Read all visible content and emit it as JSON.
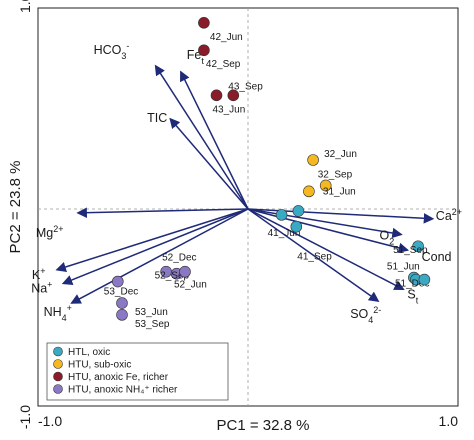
{
  "chart_data": {
    "type": "scatter",
    "subtype": "PCA biplot",
    "xlabel": "PC1 = 32.8 %",
    "ylabel": "PC2 = 23.8 %",
    "xlim": [
      -1.0,
      1.0
    ],
    "ylim": [
      -1.0,
      1.0
    ],
    "xticks": [
      {
        "value": -1.0,
        "label": "-1.0"
      },
      {
        "value": 1.0,
        "label": "1.0"
      }
    ],
    "yticks": [
      {
        "value": 1.0,
        "label": "1.0"
      },
      {
        "value": -1.0,
        "label": "-1.0"
      }
    ],
    "zero_lines": true,
    "legend_position": "bottom-left",
    "arrow_color": "#1f2a78",
    "groups": [
      {
        "name": "HTL, oxic",
        "color": "#3aa9c4"
      },
      {
        "name": "HTU, sub-oxic",
        "color": "#f5b820"
      },
      {
        "name": "HTU, anoxic Fe, richer",
        "color": "#8a1c2a"
      },
      {
        "name": "HTU, anoxic NH₄⁺ richer",
        "color": "#8a78c4"
      }
    ],
    "vectors": [
      {
        "label": "HCO3-",
        "x": -0.44,
        "y": 0.73
      },
      {
        "label": "Fet",
        "x": -0.32,
        "y": 0.7
      },
      {
        "label": "TIC",
        "x": -0.37,
        "y": 0.46
      },
      {
        "label": "Ca2+",
        "x": 0.88,
        "y": -0.05
      },
      {
        "label": "O2",
        "x": 0.73,
        "y": -0.13
      },
      {
        "label": "Cond",
        "x": 0.76,
        "y": -0.21
      },
      {
        "label": "St",
        "x": 0.74,
        "y": -0.41
      },
      {
        "label": "SO42-",
        "x": 0.62,
        "y": -0.47
      },
      {
        "label": "Mg2+",
        "x": -0.81,
        "y": -0.02
      },
      {
        "label": "K+",
        "x": -0.91,
        "y": -0.31
      },
      {
        "label": "Na+",
        "x": -0.88,
        "y": -0.38
      },
      {
        "label": "NH4+",
        "x": -0.84,
        "y": -0.48
      }
    ],
    "points": [
      {
        "label": "42_Jun",
        "group": 2,
        "x": -0.21,
        "y": 0.95
      },
      {
        "label": "42_Sep",
        "group": 2,
        "x": -0.21,
        "y": 0.81
      },
      {
        "label": "43_Sep",
        "group": 2,
        "x": -0.07,
        "y": 0.58
      },
      {
        "label": "43_Jun",
        "group": 2,
        "x": -0.15,
        "y": 0.58
      },
      {
        "label": "32_Jun",
        "group": 1,
        "x": 0.31,
        "y": 0.25
      },
      {
        "label": "32_Sep",
        "group": 1,
        "x": 0.37,
        "y": 0.12
      },
      {
        "label": "31_Jun",
        "group": 1,
        "x": 0.29,
        "y": 0.09
      },
      {
        "label": "41_Jun",
        "group": 0,
        "x": 0.16,
        "y": -0.03
      },
      {
        "label": "41_Sep",
        "group": 0,
        "x": 0.23,
        "y": -0.09
      },
      {
        "label": "",
        "group": 0,
        "x": 0.24,
        "y": -0.01
      },
      {
        "label": "51_Sep",
        "group": 0,
        "x": 0.81,
        "y": -0.19
      },
      {
        "label": "51_Jun",
        "group": 0,
        "x": 0.79,
        "y": -0.35
      },
      {
        "label": "51_Dec",
        "group": 0,
        "x": 0.8,
        "y": -0.36
      },
      {
        "label": "",
        "group": 0,
        "x": 0.84,
        "y": -0.36
      },
      {
        "label": "52_Dec",
        "group": 3,
        "x": -0.39,
        "y": -0.32
      },
      {
        "label": "52_Sep",
        "group": 3,
        "x": -0.34,
        "y": -0.33
      },
      {
        "label": "52_Jun",
        "group": 3,
        "x": -0.3,
        "y": -0.32
      },
      {
        "label": "53_Dec",
        "group": 3,
        "x": -0.62,
        "y": -0.37
      },
      {
        "label": "53_Jun",
        "group": 3,
        "x": -0.6,
        "y": -0.48
      },
      {
        "label": "53_Sep",
        "group": 3,
        "x": -0.6,
        "y": -0.54
      }
    ]
  }
}
